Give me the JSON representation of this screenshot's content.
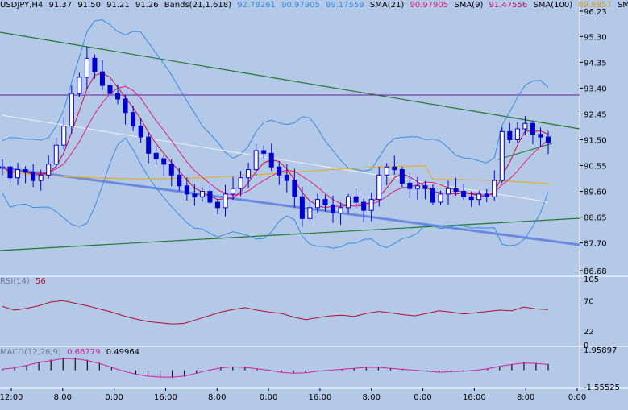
{
  "main_header": {
    "symbol": "USDJPY,H4",
    "open": "91.37",
    "high": "91.50",
    "low": "91.21",
    "close": "91.26",
    "bands_label": "Bands(21,1.618)",
    "bands_upper": "92.78261",
    "bands_mid": "90.97905",
    "bands_lower": "89.17559",
    "sma21_label": "SMA(21)",
    "sma21_value": "90.97905",
    "sma9_label": "SMA(9)",
    "sma9_value": "91.47556",
    "sma100_label": "SMA(100)",
    "sma100_value": "89.8857",
    "sma200_label": "SMA(20"
  },
  "rsi_header": {
    "label": "RSI(14)",
    "value": "56"
  },
  "macd_header": {
    "label": "MACD(12,26,9)",
    "value1": "0.66779",
    "value2": "0.49964"
  },
  "colors": {
    "background": "#b4c8e8",
    "candle": "#0000cc",
    "bands": "#3a8de0",
    "sma21": "#e0207a",
    "sma9": "#cc1040",
    "sma100": "#e0b030",
    "sma200": "#f0f0f0",
    "trend_green": "#1e7a2e",
    "trend_blue": "#6a8ae0",
    "level_purple": "#6a1a9a",
    "rsi_line": "#b0102a",
    "macd_hist": "#111111",
    "macd_signal": "#d020a0",
    "axis_text": "#000000",
    "sma9_text": "#c01060",
    "sma100_text": "#d0a020"
  },
  "chart_data": [
    {
      "type": "candlestick",
      "title": "USDJPY,H4",
      "yaxis_ticks": [
        "96.23",
        "95.30",
        "94.35",
        "93.40",
        "92.45",
        "91.50",
        "90.55",
        "89.60",
        "88.65",
        "87.70",
        "86.68"
      ],
      "ylim": [
        86.68,
        96.23
      ],
      "close_series": [
        90.5,
        90.1,
        90.4,
        90.3,
        90.0,
        90.2,
        90.6,
        91.3,
        92.0,
        93.2,
        93.8,
        94.5,
        94.0,
        93.5,
        93.2,
        93.0,
        92.5,
        92.0,
        91.6,
        91.0,
        90.8,
        90.6,
        90.2,
        89.8,
        89.5,
        89.4,
        89.6,
        89.2,
        89.0,
        89.5,
        89.7,
        90.1,
        90.4,
        91.1,
        91.0,
        90.5,
        90.2,
        90.0,
        89.4,
        88.6,
        89.0,
        89.3,
        89.1,
        88.8,
        89.0,
        89.4,
        89.2,
        88.9,
        89.3,
        90.2,
        90.5,
        90.4,
        89.9,
        89.7,
        89.8,
        89.7,
        89.2,
        89.5,
        89.7,
        89.6,
        89.4,
        89.3,
        89.5,
        89.4,
        90.0,
        91.8,
        91.5,
        91.9,
        92.1,
        91.7,
        91.6,
        91.4
      ],
      "indicators": [
        "Bands(21,1.618)",
        "SMA(21)",
        "SMA(9)",
        "SMA(100)",
        "SMA(20"
      ]
    },
    {
      "type": "line",
      "title": "RSI(14)",
      "yaxis_ticks": [
        "105",
        "70",
        "22",
        "0"
      ],
      "ylim": [
        0,
        105
      ],
      "values": [
        61,
        55,
        58,
        62,
        68,
        70,
        66,
        62,
        57,
        52,
        46,
        41,
        37,
        35,
        33,
        34,
        40,
        46,
        52,
        56,
        59,
        55,
        52,
        50,
        44,
        40,
        43,
        46,
        47,
        45,
        50,
        53,
        51,
        48,
        46,
        50,
        54,
        52,
        49,
        51,
        53,
        55,
        54,
        60,
        57,
        56
      ]
    },
    {
      "type": "histogram",
      "title": "MACD(12,26,9)",
      "yaxis_ticks": [
        "1.95897",
        "-1.55525"
      ],
      "ylim": [
        -1.55525,
        1.95897
      ],
      "hist": [
        0.1,
        0.25,
        0.5,
        0.8,
        1.0,
        1.2,
        1.2,
        1.0,
        0.7,
        0.3,
        -0.1,
        -0.4,
        -0.6,
        -0.7,
        -0.7,
        -0.6,
        -0.3,
        0.0,
        0.25,
        0.35,
        0.3,
        0.15,
        0.0,
        -0.2,
        -0.3,
        -0.25,
        -0.1,
        0.0,
        0.1,
        0.2,
        0.3,
        0.3,
        0.2,
        0.1,
        0.0,
        -0.1,
        -0.2,
        -0.15,
        -0.1,
        0.0,
        0.15,
        0.4,
        0.6,
        0.75,
        0.7,
        0.6
      ]
    }
  ],
  "time_axis": [
    "12:00",
    "8:00",
    "0:00",
    "16:00",
    "8:00",
    "0:00",
    "16:00",
    "8:00",
    "0:00",
    "16:00",
    "8:00",
    "0:00"
  ]
}
